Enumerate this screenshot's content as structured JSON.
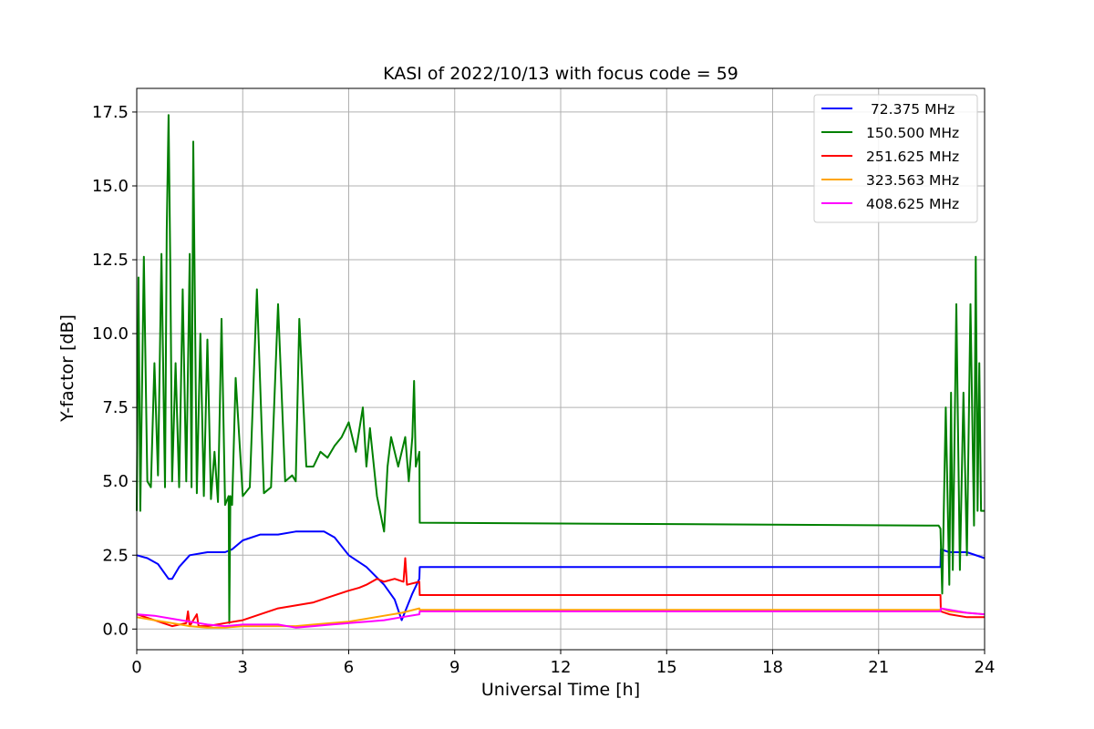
{
  "chart_data": {
    "type": "line",
    "title": "KASI of 2022/10/13 with focus code = 59",
    "xlabel": "Universal Time [h]",
    "ylabel": "Y-factor [dB]",
    "xlim": [
      0,
      24
    ],
    "ylim": [
      -0.7,
      18.3
    ],
    "xticks": [
      0,
      3,
      6,
      9,
      12,
      15,
      18,
      21,
      24
    ],
    "yticks": [
      0.0,
      2.5,
      5.0,
      7.5,
      10.0,
      12.5,
      15.0,
      17.5
    ],
    "grid": true,
    "legend_position": "top-right",
    "series": [
      {
        "name": " 72.375 MHz",
        "color": "#0000ff",
        "x": [
          0,
          0.3,
          0.6,
          0.9,
          1.0,
          1.2,
          1.5,
          2.0,
          2.5,
          2.7,
          3.0,
          3.5,
          4.0,
          4.5,
          5.0,
          5.3,
          5.6,
          6.0,
          6.5,
          7.0,
          7.3,
          7.5,
          7.8,
          8.0,
          8.01,
          22.75,
          22.76,
          23.0,
          23.5,
          24
        ],
        "y": [
          2.5,
          2.4,
          2.2,
          1.7,
          1.7,
          2.1,
          2.5,
          2.6,
          2.6,
          2.7,
          3.0,
          3.2,
          3.2,
          3.3,
          3.3,
          3.3,
          3.1,
          2.5,
          2.1,
          1.5,
          1.0,
          0.3,
          1.2,
          1.7,
          2.1,
          2.1,
          2.7,
          2.6,
          2.6,
          2.4
        ]
      },
      {
        "name": "150.500 MHz",
        "color": "#008000",
        "x": [
          0,
          0.05,
          0.1,
          0.2,
          0.3,
          0.4,
          0.5,
          0.6,
          0.7,
          0.8,
          0.85,
          0.9,
          0.95,
          1.0,
          1.1,
          1.2,
          1.3,
          1.4,
          1.5,
          1.55,
          1.6,
          1.7,
          1.8,
          1.9,
          2.0,
          2.1,
          2.2,
          2.3,
          2.4,
          2.5,
          2.6,
          2.62,
          2.65,
          2.7,
          2.8,
          3.0,
          3.2,
          3.4,
          3.6,
          3.8,
          4.0,
          4.2,
          4.4,
          4.5,
          4.6,
          4.8,
          5.0,
          5.2,
          5.4,
          5.6,
          5.8,
          6.0,
          6.2,
          6.4,
          6.5,
          6.6,
          6.8,
          7.0,
          7.1,
          7.2,
          7.4,
          7.6,
          7.7,
          7.8,
          7.85,
          7.9,
          8.0,
          8.01,
          22.7,
          22.75,
          22.8,
          22.9,
          23.0,
          23.05,
          23.1,
          23.2,
          23.3,
          23.4,
          23.5,
          23.6,
          23.7,
          23.75,
          23.8,
          23.85,
          23.9,
          24
        ],
        "y": [
          4.0,
          11.9,
          4.0,
          12.6,
          5.0,
          4.8,
          9.0,
          5.2,
          12.7,
          4.8,
          13.5,
          17.4,
          12.3,
          5.0,
          9.0,
          4.8,
          11.5,
          5.0,
          12.7,
          4.8,
          16.5,
          4.6,
          10.0,
          4.5,
          9.8,
          4.4,
          6.0,
          4.3,
          10.5,
          4.2,
          4.5,
          0.2,
          4.5,
          4.2,
          8.5,
          4.5,
          4.8,
          11.5,
          4.6,
          4.8,
          11.0,
          5.0,
          5.2,
          5.0,
          10.5,
          5.5,
          5.5,
          6.0,
          5.8,
          6.2,
          6.5,
          7.0,
          6.0,
          7.5,
          5.5,
          6.8,
          4.5,
          3.3,
          5.5,
          6.5,
          5.5,
          6.5,
          5.0,
          6.5,
          8.4,
          5.5,
          6.0,
          3.6,
          3.5,
          3.4,
          1.2,
          7.5,
          1.5,
          8.0,
          2.0,
          11.0,
          2.0,
          8.0,
          2.5,
          11.0,
          3.5,
          12.6,
          4.0,
          9.0,
          4.0,
          4.0
        ]
      },
      {
        "name": "251.625 MHz",
        "color": "#ff0000",
        "x": [
          0,
          0.5,
          1.0,
          1.4,
          1.45,
          1.5,
          1.7,
          1.75,
          2.0,
          2.5,
          3.0,
          3.5,
          4.0,
          4.5,
          5.0,
          5.5,
          6.0,
          6.3,
          6.5,
          6.8,
          7.0,
          7.3,
          7.55,
          7.6,
          7.65,
          8.0,
          8.01,
          22.75,
          22.76,
          23.0,
          23.5,
          24
        ],
        "y": [
          0.5,
          0.3,
          0.1,
          0.2,
          0.6,
          0.1,
          0.5,
          0.1,
          0.1,
          0.2,
          0.3,
          0.5,
          0.7,
          0.8,
          0.9,
          1.1,
          1.3,
          1.4,
          1.5,
          1.7,
          1.6,
          1.7,
          1.6,
          2.4,
          1.5,
          1.6,
          1.15,
          1.15,
          0.6,
          0.5,
          0.4,
          0.4
        ]
      },
      {
        "name": "323.563 MHz",
        "color": "#ffa500",
        "x": [
          0,
          0.5,
          1.0,
          1.5,
          2.0,
          2.5,
          3.0,
          3.5,
          4.0,
          4.5,
          5.0,
          5.5,
          6.0,
          6.5,
          7.0,
          7.5,
          8.0,
          8.01,
          22.75,
          22.76,
          23.0,
          23.5,
          24
        ],
        "y": [
          0.4,
          0.3,
          0.2,
          0.1,
          0.05,
          0.05,
          0.1,
          0.1,
          0.1,
          0.1,
          0.15,
          0.2,
          0.25,
          0.35,
          0.45,
          0.55,
          0.7,
          0.65,
          0.65,
          0.7,
          0.6,
          0.55,
          0.5
        ]
      },
      {
        "name": "408.625 MHz",
        "color": "#ff00ff",
        "x": [
          0,
          0.5,
          1.0,
          1.5,
          2.0,
          2.5,
          3.0,
          3.5,
          4.0,
          4.5,
          5.0,
          5.5,
          6.0,
          6.5,
          7.0,
          7.5,
          8.0,
          8.01,
          22.75,
          22.76,
          23.0,
          23.5,
          24
        ],
        "y": [
          0.5,
          0.45,
          0.35,
          0.25,
          0.15,
          0.1,
          0.15,
          0.15,
          0.15,
          0.05,
          0.1,
          0.15,
          0.2,
          0.25,
          0.3,
          0.4,
          0.5,
          0.6,
          0.6,
          0.7,
          0.65,
          0.55,
          0.5
        ]
      }
    ]
  }
}
